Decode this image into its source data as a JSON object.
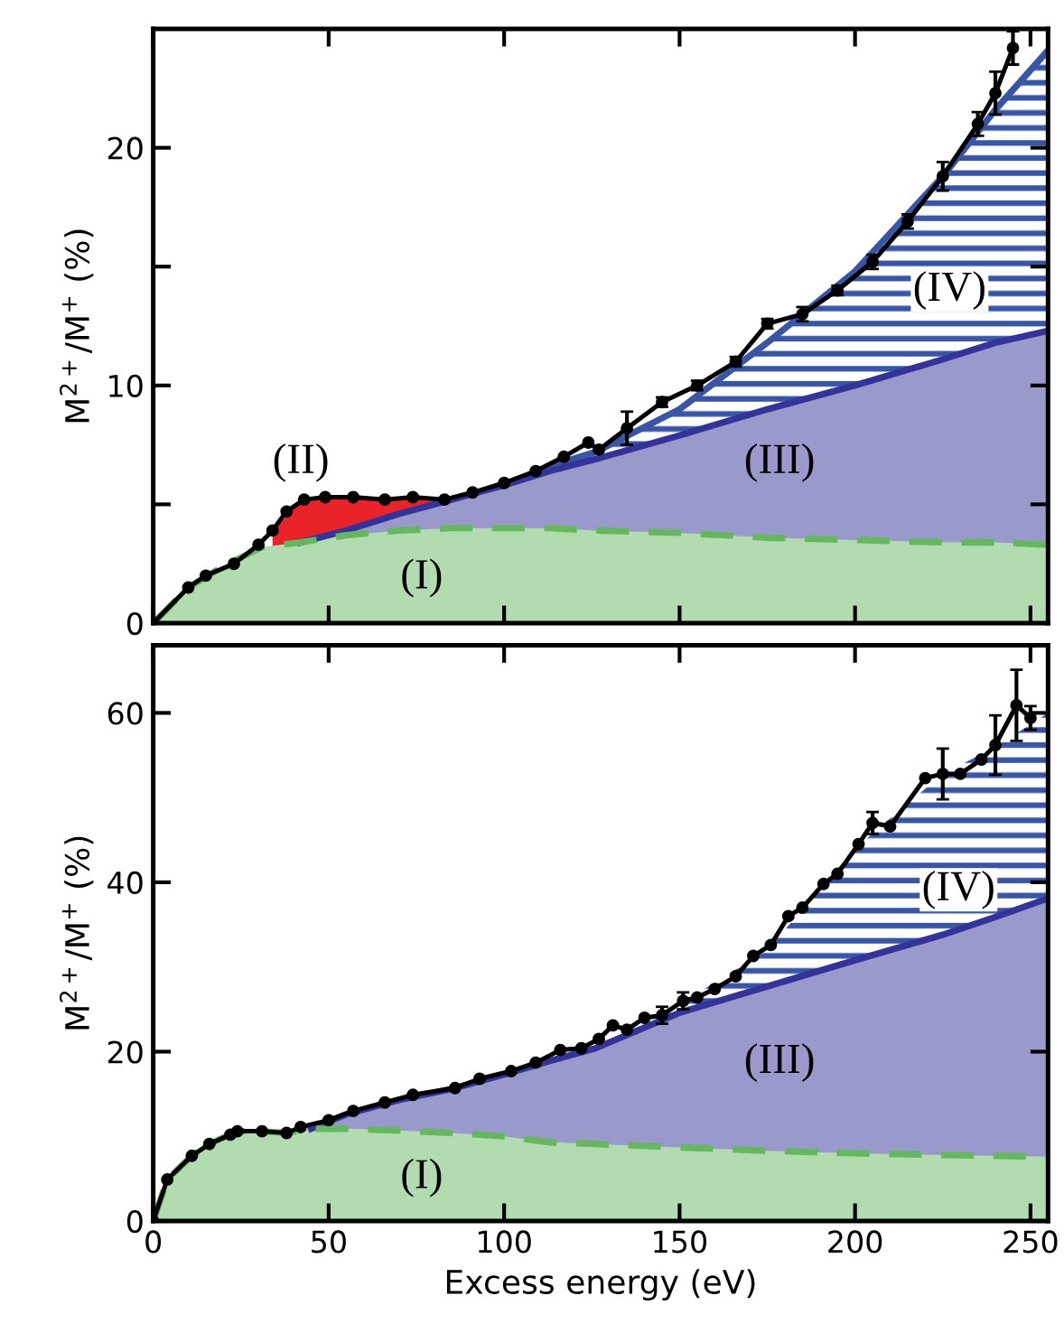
{
  "chart_data": [
    {
      "type": "area",
      "ylabel": "M$^{2+}$/M$^{+}$ (%)",
      "xlim": [
        0,
        255
      ],
      "ylim": [
        0,
        25
      ],
      "xticks": [
        0,
        50,
        100,
        150,
        200,
        250
      ],
      "yticks": [
        0,
        {
          "value": 5,
          "label": null
        },
        10,
        {
          "value": 15,
          "label": null
        },
        20
      ],
      "tick_labels": "y",
      "series": [
        {
          "color": "#3a55a4",
          "line_style": "solid",
          "x": [
            100,
            113,
            126,
            150,
            175,
            200,
            225,
            240,
            255
          ],
          "values": [
            5.8,
            6.6,
            7.2,
            9.0,
            11.8,
            14.8,
            18.8,
            21.6,
            24.1
          ]
        },
        {
          "color": "#e8242a",
          "x": [
            34,
            42,
            55,
            70,
            85,
            100
          ],
          "values": [
            3.9,
            5.1,
            5.3,
            5.2,
            5.3,
            5.8
          ]
        },
        {
          "color": "#9999cc",
          "line_style": "solid",
          "x": [
            42,
            55,
            70,
            85,
            100,
            113,
            126,
            150,
            175,
            200,
            225,
            240,
            255
          ],
          "values": [
            3.4,
            3.9,
            4.6,
            5.2,
            5.8,
            6.4,
            6.9,
            7.9,
            9.0,
            10.0,
            11.1,
            11.8,
            12.3
          ]
        },
        {
          "color": "#b3dbb0",
          "line_style": "dashed",
          "x": [
            0,
            10,
            20,
            31,
            42,
            55,
            70,
            85,
            100,
            113,
            126,
            150,
            175,
            200,
            225,
            240,
            255
          ],
          "values": [
            0,
            1.5,
            2.4,
            3.2,
            3.4,
            3.7,
            3.9,
            4.0,
            4.0,
            4.0,
            3.9,
            3.8,
            3.6,
            3.5,
            3.4,
            3.4,
            3.3
          ]
        },
        {
          "type": "line",
          "line_style": "solid",
          "marker": "circle",
          "color": "#000000",
          "x": [
            0,
            10,
            15,
            23,
            30,
            34,
            38,
            43,
            49,
            57,
            66,
            74,
            83,
            91,
            100,
            109,
            117,
            124,
            127,
            135,
            145,
            155,
            166,
            175,
            185,
            195,
            205,
            215,
            225,
            235,
            240,
            245
          ],
          "values": [
            0,
            1.5,
            2.0,
            2.5,
            3.3,
            3.9,
            4.7,
            5.2,
            5.3,
            5.3,
            5.2,
            5.3,
            5.2,
            5.5,
            5.9,
            6.4,
            7.0,
            7.6,
            7.3,
            8.2,
            9.3,
            10.0,
            11.0,
            12.6,
            13.0,
            14.0,
            15.2,
            16.9,
            18.8,
            21.0,
            22.3,
            24.2
          ],
          "errors": [
            null,
            null,
            null,
            null,
            null,
            null,
            null,
            null,
            null,
            null,
            null,
            null,
            null,
            null,
            null,
            null,
            null,
            null,
            null,
            0.7,
            0.2,
            0.2,
            0.2,
            0.2,
            0.3,
            0.2,
            0.3,
            0.3,
            0.6,
            0.5,
            0.9,
            0.7
          ]
        }
      ],
      "annotations": [
        "(I)",
        "(II)",
        "(III)",
        "(IV)"
      ]
    },
    {
      "type": "area",
      "xlabel": "Excess energy (eV)",
      "ylabel": "M$^{2+}$/M$^{+}$ (%)",
      "xlim": [
        0,
        255
      ],
      "ylim": [
        0,
        68
      ],
      "xticks": [
        0,
        50,
        100,
        150,
        200,
        250
      ],
      "yticks": [
        0,
        20,
        40,
        60
      ],
      "series": [
        {
          "color": "#3a55a4",
          "x": [
            126,
            150,
            175,
            200,
            225,
            240,
            255
          ],
          "values": [
            20.4,
            25.6,
            32.0,
            44.0,
            52.8,
            56.0,
            60.0
          ]
        },
        {
          "color": "#9999cc",
          "line_style": "solid",
          "x": [
            45,
            55,
            70,
            85,
            100,
            113,
            126,
            150,
            175,
            200,
            225,
            240,
            255
          ],
          "values": [
            10.9,
            12.6,
            14.3,
            15.6,
            17.3,
            18.9,
            20.4,
            24.6,
            27.7,
            30.8,
            33.8,
            35.9,
            38.1
          ]
        },
        {
          "color": "#b3dbb0",
          "line_style": "dashed",
          "x": [
            0,
            4,
            11,
            16,
            24,
            31,
            38,
            45,
            55,
            70,
            85,
            100,
            113,
            126,
            150,
            175,
            200,
            225,
            240,
            255
          ],
          "values": [
            0,
            4.9,
            7.7,
            9.1,
            10.6,
            10.6,
            10.4,
            10.9,
            10.9,
            10.7,
            10.4,
            10.0,
            9.3,
            9.1,
            8.7,
            8.3,
            8.0,
            7.8,
            7.7,
            7.6
          ]
        },
        {
          "type": "line",
          "line_style": "solid",
          "marker": "circle",
          "color": "#000000",
          "x": [
            0,
            4,
            11,
            16,
            22,
            24,
            31,
            38,
            42,
            50,
            57,
            66,
            74,
            86,
            93,
            102,
            109,
            116,
            122,
            127,
            131,
            135,
            140,
            145,
            151,
            155,
            160,
            166,
            171,
            176,
            181,
            185,
            191,
            195,
            201,
            205,
            210,
            220,
            225,
            230,
            236,
            240,
            246,
            250
          ],
          "values": [
            0,
            4.9,
            7.7,
            9.1,
            10.2,
            10.6,
            10.6,
            10.4,
            11.1,
            11.9,
            13.0,
            14.0,
            14.9,
            15.7,
            16.8,
            17.7,
            18.7,
            20.2,
            20.4,
            21.5,
            23.1,
            22.6,
            24.0,
            24.3,
            26.0,
            26.4,
            27.4,
            28.9,
            31.3,
            32.6,
            36.0,
            37.0,
            39.8,
            41.0,
            44.5,
            47.0,
            46.6,
            52.3,
            52.8,
            52.8,
            54.5,
            56.2,
            60.9,
            59.4
          ],
          "errors": [
            null,
            null,
            null,
            null,
            null,
            null,
            null,
            null,
            null,
            null,
            null,
            null,
            null,
            null,
            null,
            null,
            null,
            null,
            null,
            null,
            null,
            null,
            null,
            1.0,
            1.0,
            null,
            null,
            null,
            null,
            null,
            null,
            null,
            null,
            null,
            null,
            1.3,
            null,
            null,
            3.0,
            null,
            null,
            3.5,
            4.2,
            1.4
          ]
        }
      ],
      "annotations": [
        "(I)",
        "(III)",
        "(IV)"
      ]
    }
  ]
}
